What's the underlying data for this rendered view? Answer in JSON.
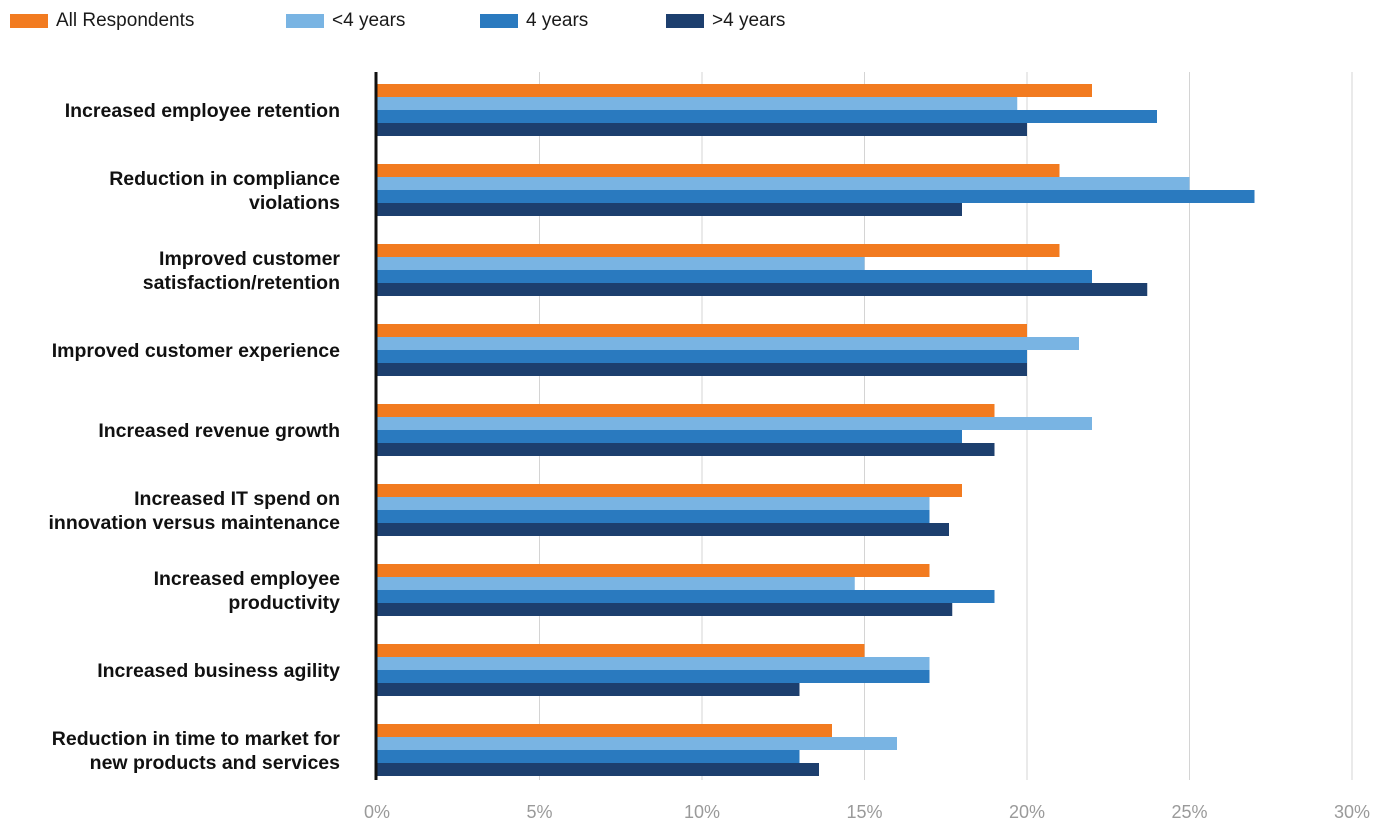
{
  "chart_data": {
    "type": "bar",
    "orientation": "horizontal",
    "title": "",
    "xlabel": "",
    "ylabel": "",
    "xlim": [
      0,
      30
    ],
    "ticks": [
      0,
      5,
      10,
      15,
      20,
      25,
      30
    ],
    "tick_labels": [
      "0%",
      "5%",
      "10%",
      "15%",
      "20%",
      "25%",
      "30%"
    ],
    "grid": "vertical",
    "legend": "top-left",
    "categories": [
      [
        "Increased employee retention"
      ],
      [
        "Reduction in compliance",
        "violations"
      ],
      [
        "Improved customer",
        "satisfaction/retention"
      ],
      [
        "Improved customer experience"
      ],
      [
        "Increased revenue growth"
      ],
      [
        "Increased IT spend on",
        "innovation versus maintenance"
      ],
      [
        "Increased employee",
        "productivity"
      ],
      [
        "Increased business agility"
      ],
      [
        "Reduction in time to market for",
        "new products and services"
      ]
    ],
    "series": [
      {
        "name": "All Respondents",
        "color": "#f27b20",
        "values": [
          22,
          21,
          21,
          20,
          19,
          18,
          17,
          15,
          14
        ]
      },
      {
        "name": "<4 years",
        "color": "#79b4e3",
        "values": [
          19.7,
          25,
          15,
          21.6,
          22,
          17,
          14.7,
          17,
          16
        ]
      },
      {
        "name": "4 years",
        "color": "#2a7abf",
        "values": [
          24,
          27,
          22,
          20,
          18,
          17,
          19,
          17,
          13
        ]
      },
      {
        "name": ">4 years",
        "color": "#1d3f6e",
        "values": [
          20,
          18,
          23.7,
          20,
          19,
          17.6,
          17.7,
          13,
          13.6
        ]
      }
    ]
  }
}
